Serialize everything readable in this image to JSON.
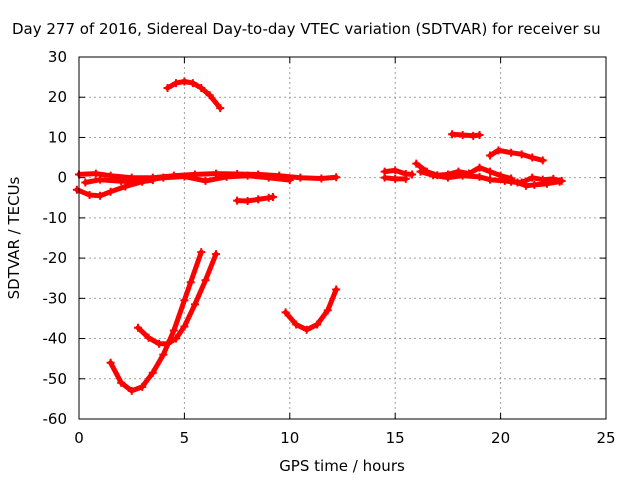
{
  "chart_data": {
    "type": "scatter",
    "title": "Day 277 of 2016, Sidereal Day-to-day VTEC variation (SDTVAR) for receiver su",
    "xlabel": "GPS time / hours",
    "ylabel": "SDTVAR / TECUs",
    "xlim": [
      0,
      25
    ],
    "ylim": [
      -60,
      30
    ],
    "xticks": [
      0,
      5,
      10,
      15,
      20,
      25
    ],
    "yticks": [
      -60,
      -50,
      -40,
      -30,
      -20,
      -10,
      0,
      10,
      20,
      30
    ],
    "grid": true,
    "colors": {
      "series": "#ff0000",
      "grid": "#a0a0a0",
      "axis": "#000000"
    },
    "series": [
      {
        "points": [
          [
            -0.1,
            -3.0
          ],
          [
            0.5,
            -4.3
          ],
          [
            1.0,
            -4.5
          ],
          [
            1.5,
            -3.5
          ],
          [
            2.2,
            -2.2
          ],
          [
            3.0,
            -1.0
          ],
          [
            3.5,
            -0.6
          ]
        ]
      },
      {
        "points": [
          [
            0.0,
            0.8
          ],
          [
            0.8,
            1.0
          ],
          [
            1.5,
            0.5
          ],
          [
            2.5,
            0.0
          ],
          [
            3.5,
            0.0
          ],
          [
            4.5,
            0.5
          ],
          [
            5.5,
            0.8
          ],
          [
            6.5,
            1.0
          ],
          [
            7.5,
            0.9
          ],
          [
            8.5,
            0.8
          ],
          [
            9.5,
            0.5
          ],
          [
            10.5,
            0.0
          ],
          [
            11.5,
            -0.2
          ],
          [
            12.2,
            0.1
          ]
        ]
      },
      {
        "points": [
          [
            0.3,
            -1.2
          ],
          [
            1.0,
            -0.5
          ],
          [
            2.0,
            -0.9
          ],
          [
            3.0,
            -0.8
          ],
          [
            4.0,
            0.0
          ],
          [
            5.0,
            0.3
          ],
          [
            6.0,
            -0.8
          ],
          [
            7.0,
            0.2
          ],
          [
            8.0,
            0.5
          ],
          [
            9.0,
            0.0
          ],
          [
            10.0,
            -0.6
          ]
        ]
      },
      {
        "points": [
          [
            4.2,
            22.3
          ],
          [
            4.6,
            23.5
          ],
          [
            5.0,
            23.9
          ],
          [
            5.4,
            23.5
          ],
          [
            5.8,
            22.3
          ],
          [
            6.2,
            20.5
          ],
          [
            6.7,
            17.3
          ]
        ]
      },
      {
        "points": [
          [
            7.5,
            -5.7
          ],
          [
            8.0,
            -5.8
          ],
          [
            8.5,
            -5.4
          ],
          [
            9.0,
            -5.0
          ],
          [
            9.2,
            -4.8
          ]
        ]
      },
      {
        "points": [
          [
            1.5,
            -46.0
          ],
          [
            2.0,
            -51.0
          ],
          [
            2.5,
            -53.0
          ],
          [
            3.0,
            -52.0
          ],
          [
            3.5,
            -48.5
          ],
          [
            4.0,
            -44.0
          ],
          [
            4.5,
            -38.0
          ],
          [
            5.0,
            -30.5
          ],
          [
            5.3,
            -26.0
          ],
          [
            5.8,
            -18.5
          ]
        ]
      },
      {
        "points": [
          [
            2.8,
            -37.3
          ],
          [
            3.3,
            -39.8
          ],
          [
            3.8,
            -41.3
          ],
          [
            4.2,
            -41.3
          ],
          [
            4.6,
            -40.0
          ],
          [
            5.0,
            -37.0
          ],
          [
            5.5,
            -31.5
          ],
          [
            6.0,
            -25.5
          ],
          [
            6.5,
            -19.0
          ]
        ]
      },
      {
        "points": [
          [
            9.8,
            -33.5
          ],
          [
            10.3,
            -36.5
          ],
          [
            10.8,
            -37.8
          ],
          [
            11.3,
            -36.5
          ],
          [
            11.8,
            -33.0
          ],
          [
            12.2,
            -27.8
          ]
        ]
      },
      {
        "points": [
          [
            14.5,
            1.5
          ],
          [
            15.0,
            1.8
          ],
          [
            15.5,
            0.9
          ],
          [
            15.8,
            0.8
          ]
        ]
      },
      {
        "points": [
          [
            14.5,
            0.0
          ],
          [
            15.0,
            -0.3
          ],
          [
            15.5,
            -0.3
          ]
        ]
      },
      {
        "points": [
          [
            16.0,
            3.5
          ],
          [
            16.5,
            1.5
          ],
          [
            17.0,
            0.6
          ],
          [
            17.5,
            0.8
          ],
          [
            18.0,
            1.5
          ],
          [
            18.5,
            1.0
          ],
          [
            19.0,
            2.5
          ],
          [
            19.5,
            1.5
          ],
          [
            20.0,
            0.5
          ],
          [
            20.5,
            -0.2
          ]
        ]
      },
      {
        "points": [
          [
            16.2,
            1.5
          ],
          [
            16.8,
            0.6
          ],
          [
            17.5,
            0.0
          ],
          [
            18.2,
            0.5
          ],
          [
            19.0,
            0.2
          ],
          [
            19.5,
            -0.5
          ],
          [
            20.2,
            -0.8
          ],
          [
            20.8,
            -1.2
          ],
          [
            21.2,
            -2.0
          ],
          [
            21.6,
            -1.8
          ],
          [
            22.2,
            -1.5
          ],
          [
            22.8,
            -1.0
          ]
        ]
      },
      {
        "points": [
          [
            20.5,
            -1.0
          ],
          [
            21.0,
            -1.2
          ],
          [
            21.5,
            0.0
          ],
          [
            22.0,
            -0.5
          ],
          [
            22.5,
            -0.3
          ],
          [
            22.9,
            -0.8
          ]
        ]
      },
      {
        "points": [
          [
            17.7,
            10.8
          ],
          [
            18.2,
            10.6
          ],
          [
            18.7,
            10.4
          ],
          [
            19.0,
            10.6
          ]
        ]
      },
      {
        "points": [
          [
            19.5,
            5.5
          ],
          [
            19.9,
            6.8
          ],
          [
            20.5,
            6.2
          ],
          [
            21.0,
            5.8
          ],
          [
            21.5,
            5.0
          ],
          [
            22.0,
            4.3
          ]
        ]
      }
    ]
  }
}
